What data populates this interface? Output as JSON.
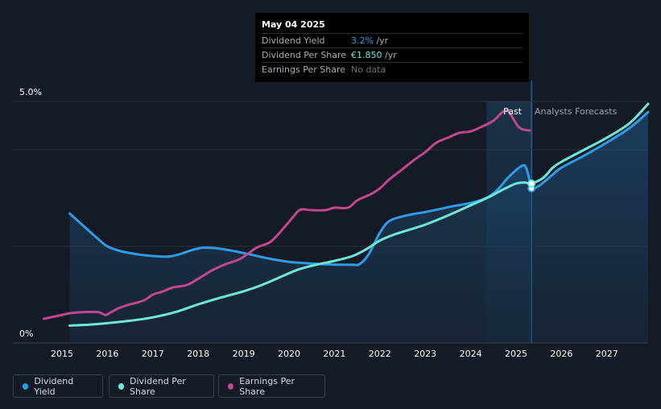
{
  "tooltip": {
    "date": "May 04 2025",
    "rows": [
      {
        "label": "Dividend Yield",
        "value": "3.2%",
        "unit": " /yr",
        "color": "#2e9be6"
      },
      {
        "label": "Dividend Per Share",
        "value": "€1.850",
        "unit": " /yr",
        "color": "#6ee8d6"
      },
      {
        "label": "Earnings Per Share",
        "value": "No data",
        "unit": "",
        "color": "#6b7078"
      }
    ]
  },
  "legend": [
    {
      "label": "Dividend Yield",
      "color": "#2e9be6"
    },
    {
      "label": "Dividend Per Share",
      "color": "#6ee8d6"
    },
    {
      "label": "Earnings Per Share",
      "color": "#c2478f"
    }
  ],
  "chart_data": {
    "type": "line",
    "y_tick_labels": [
      "5.0%",
      "0%"
    ],
    "x_tick_labels": [
      "2015",
      "2016",
      "2017",
      "2018",
      "2019",
      "2020",
      "2021",
      "2022",
      "2023",
      "2024",
      "2025",
      "2026",
      "2027"
    ],
    "region_labels": {
      "past": "Past",
      "forecast": "Analysts Forecasts"
    },
    "ylim": [
      0,
      5.0
    ],
    "xlim": [
      2014.6,
      2028.0
    ],
    "past_band": [
      2024.35,
      2025.34
    ],
    "forecast_start": 2025.34,
    "grid": true,
    "series": [
      {
        "name": "Dividend Yield",
        "color": "#2e9be6",
        "fill": true,
        "x": [
          2015.17,
          2015.5,
          2015.8,
          2016.0,
          2016.3,
          2016.7,
          2017.0,
          2017.35,
          2017.6,
          2017.85,
          2018.1,
          2018.4,
          2018.8,
          2019.2,
          2019.6,
          2020.0,
          2020.4,
          2020.8,
          2021.2,
          2021.4,
          2021.55,
          2021.75,
          2022.0,
          2022.2,
          2022.5,
          2022.8,
          2023.0,
          2023.3,
          2023.6,
          2023.9,
          2024.2,
          2024.4,
          2024.6,
          2024.8,
          2025.0,
          2025.1,
          2025.18,
          2025.24,
          2025.3,
          2025.34,
          2025.5,
          2025.8,
          2026.0,
          2026.5,
          2027.0,
          2027.5,
          2028.0
        ],
        "y": [
          2.68,
          2.4,
          2.15,
          2.0,
          1.9,
          1.83,
          1.8,
          1.79,
          1.84,
          1.92,
          1.97,
          1.96,
          1.9,
          1.82,
          1.74,
          1.68,
          1.65,
          1.63,
          1.62,
          1.62,
          1.63,
          1.83,
          2.28,
          2.52,
          2.62,
          2.68,
          2.71,
          2.77,
          2.83,
          2.88,
          2.95,
          3.03,
          3.18,
          3.4,
          3.58,
          3.65,
          3.68,
          3.58,
          3.35,
          3.2,
          3.25,
          3.48,
          3.63,
          3.88,
          4.15,
          4.45,
          4.78
        ]
      },
      {
        "name": "Dividend Per Share",
        "color": "#6ee8d6",
        "fill": false,
        "x": [
          2015.17,
          2015.6,
          2016.0,
          2016.5,
          2017.0,
          2017.5,
          2018.0,
          2018.5,
          2019.0,
          2019.4,
          2019.8,
          2020.2,
          2020.6,
          2021.0,
          2021.4,
          2021.7,
          2022.0,
          2022.3,
          2022.7,
          2023.0,
          2023.5,
          2024.0,
          2024.4,
          2024.7,
          2025.0,
          2025.2,
          2025.34,
          2025.6,
          2025.8,
          2026.0,
          2026.5,
          2027.0,
          2027.5,
          2028.0
        ],
        "y": [
          0.36,
          0.38,
          0.41,
          0.46,
          0.53,
          0.64,
          0.8,
          0.94,
          1.07,
          1.2,
          1.36,
          1.52,
          1.62,
          1.7,
          1.8,
          1.94,
          2.12,
          2.24,
          2.36,
          2.45,
          2.64,
          2.85,
          3.02,
          3.17,
          3.3,
          3.32,
          3.3,
          3.42,
          3.62,
          3.75,
          4.0,
          4.25,
          4.55,
          4.95
        ]
      },
      {
        "name": "Earnings Per Share",
        "color": "#c2478f",
        "fill": false,
        "x": [
          2014.6,
          2014.9,
          2015.2,
          2015.5,
          2015.8,
          2015.95,
          2016.05,
          2016.25,
          2016.5,
          2016.8,
          2017.0,
          2017.2,
          2017.45,
          2017.75,
          2018.0,
          2018.3,
          2018.6,
          2018.9,
          2019.1,
          2019.3,
          2019.6,
          2019.9,
          2020.1,
          2020.25,
          2020.5,
          2020.8,
          2021.0,
          2021.3,
          2021.5,
          2021.8,
          2022.0,
          2022.2,
          2022.5,
          2022.8,
          2023.0,
          2023.25,
          2023.5,
          2023.75,
          2024.0,
          2024.25,
          2024.5,
          2024.7,
          2024.82,
          2024.95,
          2025.05,
          2025.15,
          2025.3
        ],
        "y": [
          0.5,
          0.56,
          0.62,
          0.64,
          0.64,
          0.58,
          0.62,
          0.72,
          0.8,
          0.88,
          1.0,
          1.06,
          1.15,
          1.2,
          1.33,
          1.5,
          1.63,
          1.73,
          1.85,
          1.98,
          2.1,
          2.4,
          2.62,
          2.76,
          2.75,
          2.75,
          2.8,
          2.8,
          2.95,
          3.08,
          3.2,
          3.38,
          3.6,
          3.82,
          3.95,
          4.15,
          4.25,
          4.35,
          4.38,
          4.48,
          4.6,
          4.78,
          4.8,
          4.62,
          4.48,
          4.42,
          4.4
        ]
      }
    ],
    "tooltip_markers": [
      {
        "series": "Dividend Yield",
        "x": 2025.34,
        "y": 3.2
      },
      {
        "series": "Dividend Per Share",
        "x": 2025.34,
        "y": 3.3
      }
    ]
  }
}
